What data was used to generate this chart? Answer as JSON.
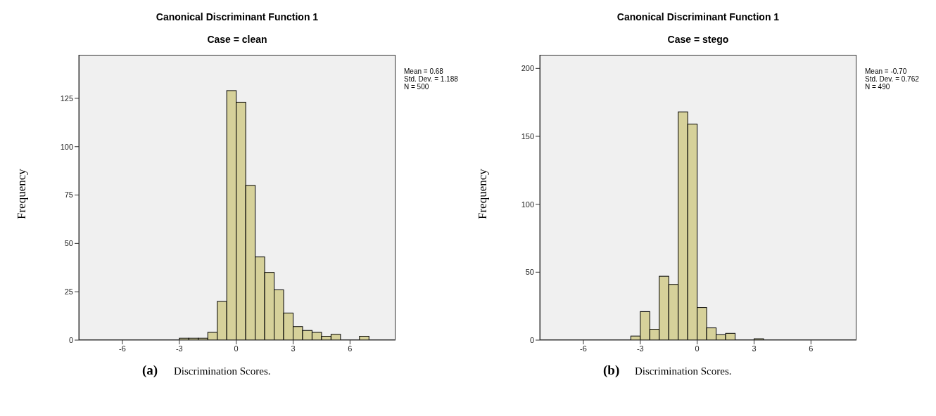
{
  "chart_data": [
    {
      "type": "histogram",
      "title": "Canonical Discriminant Function 1",
      "subtitle": "Case = clean",
      "xlabel": "Discrimination Scores.",
      "ylabel": "Frequency",
      "bins": [
        -3,
        -2.5,
        -2,
        -1.5,
        -1,
        -0.5,
        0,
        0.5,
        1,
        1.5,
        2,
        2.5,
        3,
        3.5,
        4,
        4.5,
        5,
        5.5,
        6,
        6.5,
        7
      ],
      "values": [
        1,
        1,
        1,
        4,
        20,
        129,
        123,
        80,
        43,
        35,
        26,
        14,
        7,
        5,
        4,
        2,
        3,
        0,
        0,
        2
      ],
      "color": "#d6d19a",
      "xlim": [
        -8.3,
        8.4
      ],
      "xticks": [
        -6,
        -3,
        0,
        3,
        6
      ],
      "ylim": [
        0,
        147.5
      ],
      "yticks": [
        0,
        25,
        50,
        75,
        100,
        125
      ],
      "annotations": [
        "Mean = 0.68",
        "Std. Dev. = 1.188",
        "N = 500",
        "(a)"
      ]
    },
    {
      "type": "histogram",
      "title": "Canonical Discriminant Function 1",
      "subtitle": "Case = stego",
      "xlabel": "Discrimination Scores.",
      "ylabel": "Frequency",
      "bins": [
        -3.5,
        -3,
        -2.5,
        -2,
        -1.5,
        -1,
        -0.5,
        0,
        0.5,
        1,
        1.5,
        2,
        2.5,
        3,
        3.5
      ],
      "values": [
        3,
        21,
        8,
        47,
        41,
        168,
        159,
        24,
        9,
        4,
        5,
        0,
        0,
        1
      ],
      "color": "#d6d19a",
      "xlim": [
        -8.3,
        8.4
      ],
      "xticks": [
        -6,
        -3,
        0,
        3,
        6
      ],
      "ylim": [
        0,
        210
      ],
      "yticks": [
        0,
        50,
        100,
        150,
        200
      ],
      "annotations": [
        "Mean = -0.70",
        "Std. Dev. = 0.762",
        "N = 490",
        "(b)"
      ]
    }
  ]
}
